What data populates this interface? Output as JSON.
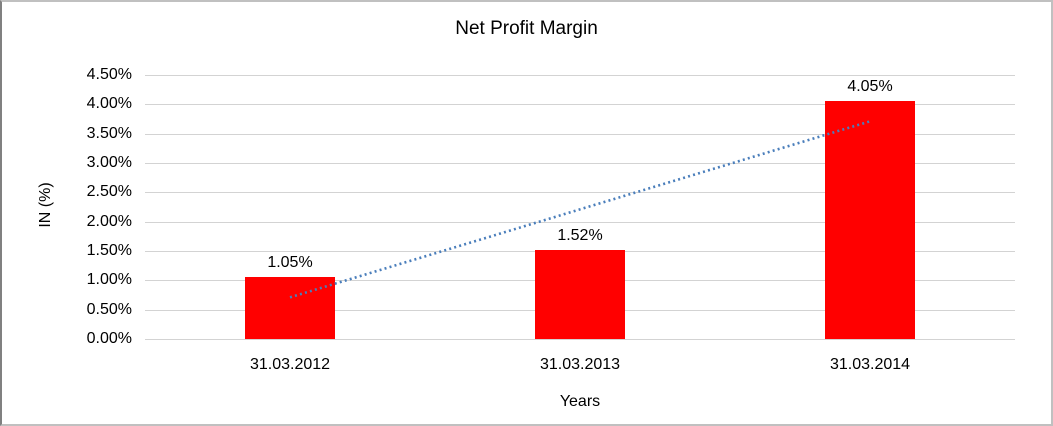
{
  "window": {
    "background": "#ffffff",
    "border_color": "#c0c0c0"
  },
  "chart_data": {
    "type": "bar",
    "title": "Net Profit Margin",
    "xlabel": "Years",
    "ylabel": "IN (%)",
    "categories": [
      "31.03.2012",
      "31.03.2013",
      "31.03.2014"
    ],
    "values": [
      1.05,
      1.52,
      4.05
    ],
    "data_labels": [
      "1.05%",
      "1.52%",
      "4.05%"
    ],
    "ylim": [
      0,
      4.5
    ],
    "yticks": [
      0,
      0.5,
      1,
      1.5,
      2,
      2.5,
      3,
      3.5,
      4,
      4.5
    ],
    "ytick_labels": [
      "0.00%",
      "0.50%",
      "1.00%",
      "1.50%",
      "2.00%",
      "2.50%",
      "3.00%",
      "3.50%",
      "4.00%",
      "4.50%"
    ],
    "grid": true,
    "legend": "none",
    "bar_color": "#ff0000",
    "gridline_color": "#d3d3d3",
    "text_color": "#000000",
    "trendline": {
      "style": "dotted",
      "color": "#4a7ebb",
      "from_category_index": 0,
      "to_category_index": 2,
      "from_value": 0.71,
      "to_value": 3.71
    }
  }
}
